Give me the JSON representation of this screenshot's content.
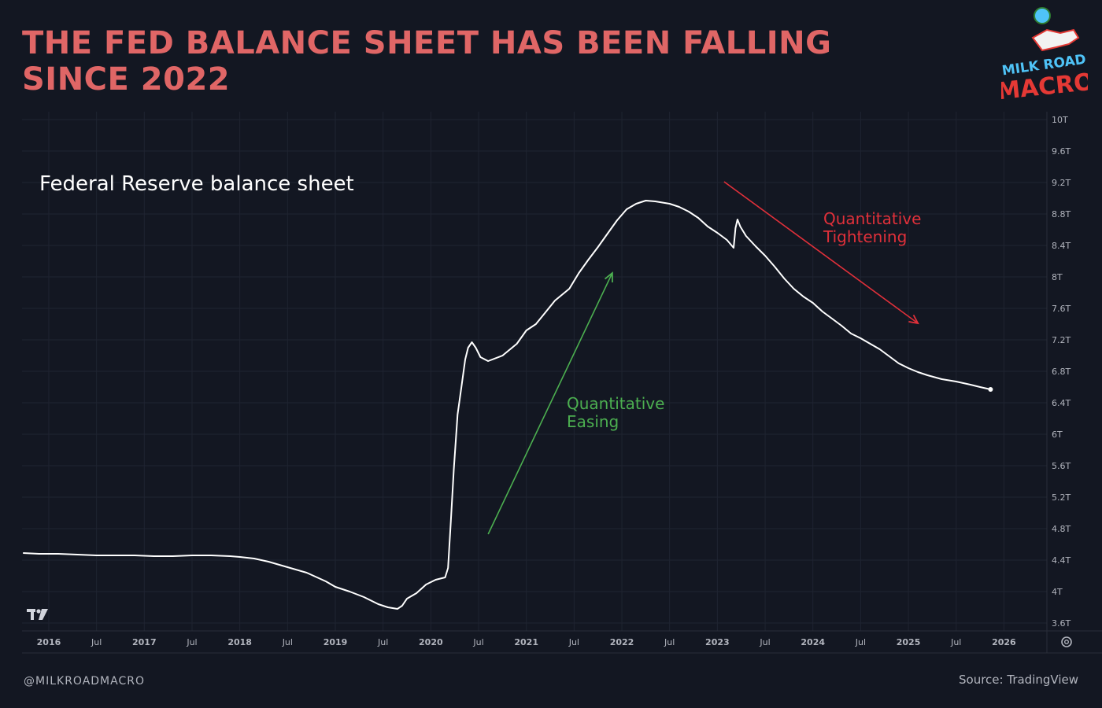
{
  "headline": {
    "line1": "THE FED BALANCE SHEET HAS BEEN FALLING",
    "line2": "SINCE 2022"
  },
  "logo": {
    "line1": "MILK ROAD",
    "line2": "MACRO",
    "icon": "astronaut-milk-carton-logo"
  },
  "footer": {
    "handle": "@MILKROADMACRO",
    "source": "Source: TradingView"
  },
  "icons": {
    "tradingview": "tradingview-logo-icon",
    "settings": "gear-icon"
  },
  "colors": {
    "background": "#131722",
    "headline": "#e06666",
    "line": "#ffffff",
    "easing": "#4caf50",
    "tightening": "#e0303a",
    "grid": "#1f2431",
    "axis_text": "#b2b5be"
  },
  "chart_data": {
    "type": "line",
    "title": "Federal Reserve balance sheet",
    "ylim": [
      3.5,
      10.1
    ],
    "xlim": [
      2015.72,
      2026.45
    ],
    "y_ticks": [
      3.6,
      4,
      4.4,
      4.8,
      5.2,
      5.6,
      6,
      6.4,
      6.8,
      7.2,
      7.6,
      8,
      8.4,
      8.8,
      9.2,
      9.6,
      10
    ],
    "y_tick_labels": [
      "3.6T",
      "4T",
      "4.4T",
      "4.8T",
      "5.2T",
      "5.6T",
      "6T",
      "6.4T",
      "6.8T",
      "7.2T",
      "7.6T",
      "8T",
      "8.4T",
      "8.8T",
      "9.2T",
      "9.6T",
      "10T"
    ],
    "x_ticks": [
      {
        "x": 2016.0,
        "label": "2016",
        "major": true
      },
      {
        "x": 2016.5,
        "label": "Jul",
        "major": false
      },
      {
        "x": 2017.0,
        "label": "2017",
        "major": true
      },
      {
        "x": 2017.5,
        "label": "Jul",
        "major": false
      },
      {
        "x": 2018.0,
        "label": "2018",
        "major": true
      },
      {
        "x": 2018.5,
        "label": "Jul",
        "major": false
      },
      {
        "x": 2019.0,
        "label": "2019",
        "major": true
      },
      {
        "x": 2019.5,
        "label": "Jul",
        "major": false
      },
      {
        "x": 2020.0,
        "label": "2020",
        "major": true
      },
      {
        "x": 2020.5,
        "label": "Jul",
        "major": false
      },
      {
        "x": 2021.0,
        "label": "2021",
        "major": true
      },
      {
        "x": 2021.5,
        "label": "Jul",
        "major": false
      },
      {
        "x": 2022.0,
        "label": "2022",
        "major": true
      },
      {
        "x": 2022.5,
        "label": "Jul",
        "major": false
      },
      {
        "x": 2023.0,
        "label": "2023",
        "major": true
      },
      {
        "x": 2023.5,
        "label": "Jul",
        "major": false
      },
      {
        "x": 2024.0,
        "label": "2024",
        "major": true
      },
      {
        "x": 2024.5,
        "label": "Jul",
        "major": false
      },
      {
        "x": 2025.0,
        "label": "2025",
        "major": true
      },
      {
        "x": 2025.5,
        "label": "Jul",
        "major": false
      },
      {
        "x": 2026.0,
        "label": "2026",
        "major": true
      }
    ],
    "grid": true,
    "series": [
      {
        "values": [
          [
            2015.73,
            4.49
          ],
          [
            2015.9,
            4.48
          ],
          [
            2016.1,
            4.48
          ],
          [
            2016.3,
            4.47
          ],
          [
            2016.5,
            4.46
          ],
          [
            2016.7,
            4.46
          ],
          [
            2016.9,
            4.46
          ],
          [
            2017.1,
            4.45
          ],
          [
            2017.3,
            4.45
          ],
          [
            2017.5,
            4.46
          ],
          [
            2017.7,
            4.46
          ],
          [
            2017.9,
            4.45
          ],
          [
            2018.0,
            4.44
          ],
          [
            2018.15,
            4.42
          ],
          [
            2018.3,
            4.38
          ],
          [
            2018.5,
            4.31
          ],
          [
            2018.7,
            4.24
          ],
          [
            2018.9,
            4.13
          ],
          [
            2019.0,
            4.06
          ],
          [
            2019.15,
            4.0
          ],
          [
            2019.3,
            3.93
          ],
          [
            2019.45,
            3.84
          ],
          [
            2019.55,
            3.8
          ],
          [
            2019.65,
            3.78
          ],
          [
            2019.7,
            3.82
          ],
          [
            2019.75,
            3.91
          ],
          [
            2019.85,
            3.98
          ],
          [
            2019.95,
            4.09
          ],
          [
            2020.05,
            4.15
          ],
          [
            2020.15,
            4.18
          ],
          [
            2020.18,
            4.3
          ],
          [
            2020.21,
            4.9
          ],
          [
            2020.24,
            5.55
          ],
          [
            2020.28,
            6.25
          ],
          [
            2020.32,
            6.6
          ],
          [
            2020.36,
            6.95
          ],
          [
            2020.39,
            7.1
          ],
          [
            2020.43,
            7.17
          ],
          [
            2020.47,
            7.1
          ],
          [
            2020.52,
            6.98
          ],
          [
            2020.6,
            6.93
          ],
          [
            2020.75,
            7.0
          ],
          [
            2020.9,
            7.15
          ],
          [
            2021.0,
            7.32
          ],
          [
            2021.1,
            7.4
          ],
          [
            2021.2,
            7.55
          ],
          [
            2021.3,
            7.7
          ],
          [
            2021.45,
            7.85
          ],
          [
            2021.55,
            8.05
          ],
          [
            2021.65,
            8.22
          ],
          [
            2021.75,
            8.38
          ],
          [
            2021.85,
            8.55
          ],
          [
            2021.95,
            8.72
          ],
          [
            2022.05,
            8.86
          ],
          [
            2022.15,
            8.93
          ],
          [
            2022.25,
            8.97
          ],
          [
            2022.35,
            8.96
          ],
          [
            2022.5,
            8.93
          ],
          [
            2022.6,
            8.89
          ],
          [
            2022.7,
            8.83
          ],
          [
            2022.8,
            8.75
          ],
          [
            2022.9,
            8.64
          ],
          [
            2023.0,
            8.56
          ],
          [
            2023.1,
            8.47
          ],
          [
            2023.17,
            8.37
          ],
          [
            2023.19,
            8.62
          ],
          [
            2023.21,
            8.73
          ],
          [
            2023.24,
            8.64
          ],
          [
            2023.3,
            8.52
          ],
          [
            2023.4,
            8.39
          ],
          [
            2023.5,
            8.27
          ],
          [
            2023.6,
            8.13
          ],
          [
            2023.7,
            7.98
          ],
          [
            2023.8,
            7.85
          ],
          [
            2023.9,
            7.75
          ],
          [
            2024.0,
            7.67
          ],
          [
            2024.1,
            7.56
          ],
          [
            2024.2,
            7.47
          ],
          [
            2024.3,
            7.38
          ],
          [
            2024.4,
            7.28
          ],
          [
            2024.5,
            7.22
          ],
          [
            2024.6,
            7.15
          ],
          [
            2024.7,
            7.08
          ],
          [
            2024.8,
            6.99
          ],
          [
            2024.9,
            6.9
          ],
          [
            2025.0,
            6.84
          ],
          [
            2025.1,
            6.79
          ],
          [
            2025.2,
            6.75
          ],
          [
            2025.35,
            6.7
          ],
          [
            2025.5,
            6.67
          ],
          [
            2025.65,
            6.63
          ],
          [
            2025.75,
            6.6
          ],
          [
            2025.86,
            6.57
          ]
        ]
      }
    ],
    "annotations": [
      {
        "text_lines": [
          "Quantitative",
          "Easing"
        ],
        "color_key": "easing",
        "arrow_from": [
          2020.6,
          4.73
        ],
        "arrow_to": [
          2021.9,
          8.05
        ]
      },
      {
        "text_lines": [
          "Quantitative",
          "Tightening"
        ],
        "color_key": "tightening",
        "arrow_from": [
          2023.07,
          9.21
        ],
        "arrow_to": [
          2025.1,
          7.41
        ]
      }
    ]
  }
}
